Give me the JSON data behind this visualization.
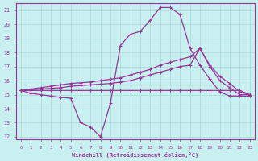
{
  "xlabel": "Windchill (Refroidissement éolien,°C)",
  "xlim": [
    -0.5,
    23.5
  ],
  "ylim": [
    11.8,
    21.5
  ],
  "yticks": [
    12,
    13,
    14,
    15,
    16,
    17,
    18,
    19,
    20,
    21
  ],
  "xticks": [
    0,
    1,
    2,
    3,
    4,
    5,
    6,
    7,
    8,
    9,
    10,
    11,
    12,
    13,
    14,
    15,
    16,
    17,
    18,
    19,
    20,
    21,
    22,
    23
  ],
  "bg_color": "#c8f0f0",
  "grid_color": "#a8d8d8",
  "line_color": "#993399",
  "line1_x": [
    0,
    1,
    2,
    3,
    4,
    5,
    6,
    7,
    8,
    9,
    10,
    11,
    12,
    13,
    14,
    15,
    16,
    17,
    18,
    19,
    20,
    21,
    22,
    23
  ],
  "line1_y": [
    15.3,
    15.1,
    15.0,
    14.9,
    14.8,
    14.75,
    13.0,
    12.7,
    12.0,
    14.4,
    18.5,
    19.3,
    19.5,
    20.3,
    21.2,
    21.2,
    20.7,
    18.3,
    17.1,
    16.1,
    15.2,
    14.9,
    14.9,
    14.9
  ],
  "line2_x": [
    0,
    1,
    2,
    3,
    4,
    5,
    6,
    7,
    8,
    9,
    10,
    11,
    12,
    13,
    14,
    15,
    16,
    17,
    18,
    19,
    20,
    21,
    22,
    23
  ],
  "line2_y": [
    15.3,
    15.3,
    15.3,
    15.3,
    15.3,
    15.3,
    15.3,
    15.3,
    15.3,
    15.3,
    15.3,
    15.3,
    15.3,
    15.3,
    15.3,
    15.3,
    15.3,
    15.3,
    15.3,
    15.3,
    15.3,
    15.3,
    15.3,
    15.0
  ],
  "line3_x": [
    0,
    1,
    2,
    3,
    4,
    5,
    6,
    7,
    8,
    9,
    10,
    11,
    12,
    13,
    14,
    15,
    16,
    17,
    18,
    19,
    20,
    21,
    22,
    23
  ],
  "line3_y": [
    15.3,
    15.35,
    15.4,
    15.45,
    15.5,
    15.6,
    15.65,
    15.7,
    15.75,
    15.8,
    15.9,
    16.0,
    16.2,
    16.4,
    16.6,
    16.8,
    17.0,
    17.1,
    18.3,
    17.0,
    16.0,
    15.5,
    15.0,
    15.0
  ],
  "line4_x": [
    0,
    1,
    2,
    3,
    4,
    5,
    6,
    7,
    8,
    9,
    10,
    11,
    12,
    13,
    14,
    15,
    16,
    17,
    18,
    19,
    20,
    21,
    22,
    23
  ],
  "line4_y": [
    15.3,
    15.4,
    15.5,
    15.6,
    15.7,
    15.8,
    15.85,
    15.9,
    16.0,
    16.1,
    16.2,
    16.4,
    16.6,
    16.8,
    17.1,
    17.3,
    17.5,
    17.7,
    18.3,
    17.1,
    16.3,
    15.8,
    15.2,
    15.0
  ]
}
